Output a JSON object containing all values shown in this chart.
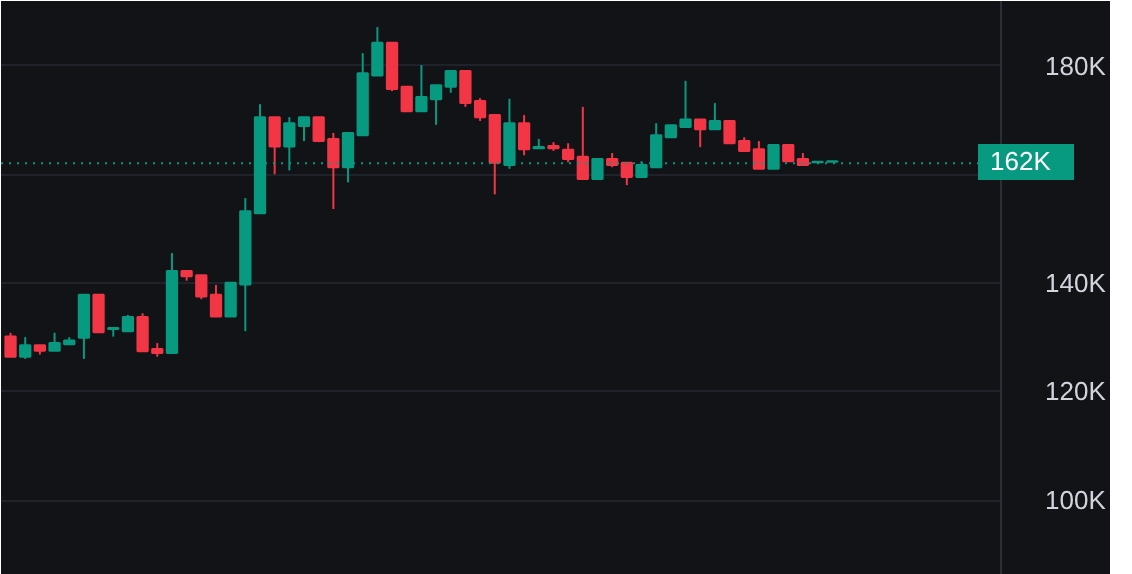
{
  "chart_data": {
    "type": "candlestick",
    "categories": [
      null,
      null,
      null,
      null,
      null,
      null,
      null,
      null,
      null,
      null,
      null,
      null,
      null,
      null,
      null,
      null,
      null,
      null,
      null,
      null,
      null,
      null,
      null,
      null,
      null,
      null,
      null,
      null,
      null,
      null,
      null,
      null,
      null,
      null,
      null,
      null,
      null,
      null,
      null,
      null,
      null,
      null,
      null,
      null,
      null,
      null,
      null,
      null,
      null,
      null,
      null,
      null,
      null,
      null,
      null,
      null,
      null,
      null,
      null,
      null,
      null,
      null,
      null,
      null,
      null,
      null,
      null,
      null
    ],
    "ohlc": [
      [
        130.1,
        130.8,
        126.4,
        126.4
      ],
      [
        126.4,
        130.0,
        126.0,
        128.5
      ],
      [
        128.5,
        128.5,
        126.8,
        127.5
      ],
      [
        127.5,
        130.8,
        127.5,
        128.9
      ],
      [
        128.7,
        130.0,
        128.7,
        129.4
      ],
      [
        129.9,
        137.8,
        126.0,
        137.8
      ],
      [
        137.8,
        137.8,
        130.9,
        130.9
      ],
      [
        131.5,
        131.8,
        130.1,
        131.7
      ],
      [
        131.1,
        134.1,
        131.1,
        133.7
      ],
      [
        133.7,
        134.4,
        127.4,
        127.4
      ],
      [
        127.8,
        128.9,
        126.4,
        127.1
      ],
      [
        127.1,
        145.5,
        127.1,
        142.2
      ],
      [
        142.2,
        142.2,
        140.4,
        141.2
      ],
      [
        141.4,
        141.4,
        137.0,
        137.5
      ],
      [
        137.8,
        139.6,
        133.8,
        133.8
      ],
      [
        133.8,
        140.0,
        133.8,
        140.0
      ],
      [
        139.7,
        155.6,
        131.1,
        153.2
      ],
      [
        152.8,
        172.9,
        152.8,
        170.5
      ],
      [
        170.5,
        170.5,
        160.0,
        165.1
      ],
      [
        165.1,
        170.5,
        160.7,
        169.4
      ],
      [
        168.9,
        170.5,
        166.1,
        170.5
      ],
      [
        170.5,
        170.5,
        165.9,
        166.1
      ],
      [
        166.5,
        167.6,
        153.6,
        161.3
      ],
      [
        161.3,
        167.6,
        158.5,
        167.6
      ],
      [
        167.2,
        182.3,
        167.2,
        178.6
      ],
      [
        178.2,
        187.1,
        178.2,
        184.2
      ],
      [
        184.2,
        184.2,
        175.3,
        175.7
      ],
      [
        176.1,
        176.1,
        171.6,
        171.6
      ],
      [
        171.6,
        180.1,
        171.6,
        174.2
      ],
      [
        173.8,
        176.4,
        169.1,
        176.4
      ],
      [
        176.1,
        179.0,
        175.0,
        179.0
      ],
      [
        179.0,
        179.0,
        172.4,
        173.1
      ],
      [
        173.5,
        174.0,
        169.8,
        170.5
      ],
      [
        170.9,
        170.9,
        156.3,
        162.1
      ],
      [
        161.7,
        173.9,
        161.0,
        169.4
      ],
      [
        169.4,
        170.9,
        163.5,
        164.6
      ],
      [
        164.8,
        166.5,
        164.8,
        165.0
      ],
      [
        165.2,
        165.9,
        164.3,
        164.8
      ],
      [
        164.5,
        165.7,
        162.2,
        162.8
      ],
      [
        163.2,
        172.4,
        159.1,
        159.1
      ],
      [
        159.1,
        162.8,
        159.1,
        162.8
      ],
      [
        162.8,
        163.9,
        161.3,
        161.7
      ],
      [
        162.1,
        162.1,
        158.0,
        159.5
      ],
      [
        159.5,
        162.4,
        159.5,
        161.7
      ],
      [
        161.3,
        169.4,
        161.3,
        167.2
      ],
      [
        166.8,
        169.0,
        166.8,
        169.0
      ],
      [
        168.7,
        177.2,
        168.7,
        170.1
      ],
      [
        170.1,
        170.1,
        165.0,
        168.3
      ],
      [
        168.3,
        173.1,
        168.3,
        169.8
      ],
      [
        169.8,
        169.8,
        165.7,
        165.7
      ],
      [
        166.1,
        166.8,
        164.3,
        164.3
      ],
      [
        164.6,
        166.1,
        161.0,
        161.0
      ],
      [
        161.0,
        165.4,
        161.0,
        165.4
      ],
      [
        165.4,
        165.4,
        162.4,
        162.4
      ],
      [
        162.8,
        163.9,
        161.7,
        161.7
      ],
      [
        162.2,
        162.3,
        162.2,
        162.3
      ],
      [
        162.3,
        162.4,
        162.3,
        162.4
      ],
      null,
      null,
      null,
      null,
      null,
      null,
      null,
      null,
      null,
      null,
      null
    ],
    "colors": [
      "#f23645",
      "#089981",
      "#f23645",
      "#089981",
      "#089981",
      "#089981",
      "#f23645",
      "#089981",
      "#089981",
      "#f23645",
      "#f23645",
      "#089981",
      "#f23645",
      "#f23645",
      "#f23645",
      "#089981",
      "#089981",
      "#089981",
      "#f23645",
      "#089981",
      "#089981",
      "#f23645",
      "#f23645",
      "#089981",
      "#089981",
      "#089981",
      "#f23645",
      "#f23645",
      "#089981",
      "#089981",
      "#089981",
      "#f23645",
      "#f23645",
      "#f23645",
      "#089981",
      "#f23645",
      "#089981",
      "#f23645",
      "#f23645",
      "#f23645",
      "#089981",
      "#f23645",
      "#f23645",
      "#089981",
      "#089981",
      "#089981",
      "#089981",
      "#f23645",
      "#089981",
      "#f23645",
      "#f23645",
      "#f23645",
      "#089981",
      "#f23645",
      "#f23645",
      "#089981",
      "#089981",
      null,
      null,
      null,
      null,
      null,
      null,
      null,
      null,
      null,
      null,
      null
    ],
    "ylim": [
      86.2,
      191.9
    ],
    "yticks": [
      {
        "value": 100,
        "label": "100K"
      },
      {
        "value": 120,
        "label": "120K"
      },
      {
        "value": 140,
        "label": "140K"
      },
      {
        "value": 160,
        "label": null
      },
      {
        "value": 180,
        "label": "180K"
      }
    ],
    "ref_lines": [
      {
        "axis": "y",
        "value": 162,
        "label": "162K",
        "color": "#089981",
        "line_style": "dotted"
      }
    ],
    "grid": "y",
    "tick_labels": "y"
  }
}
